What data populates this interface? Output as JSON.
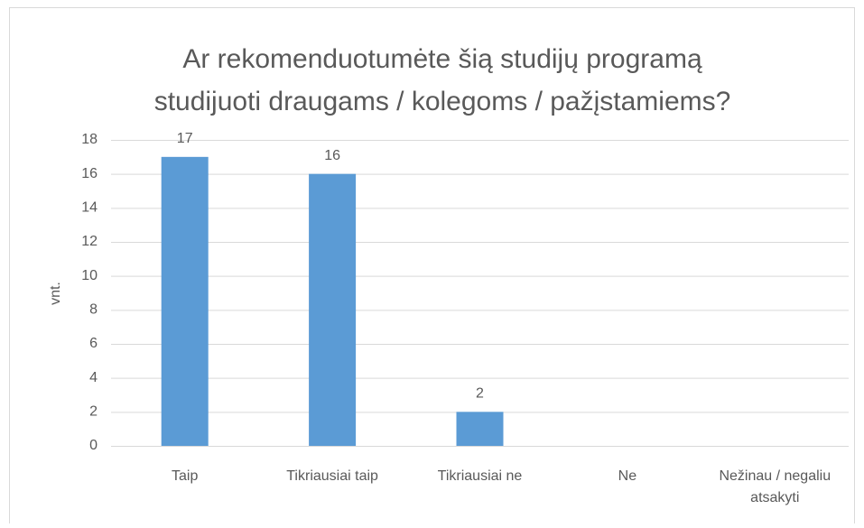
{
  "chart_data": {
    "type": "bar",
    "title": [
      "Ar rekomenduotumėte šią studijų programą",
      "studijuoti draugams / kolegoms / pažįstamiems?"
    ],
    "ylabel": "vnt.",
    "categories": [
      "Taip",
      "Tikriausiai taip",
      "Tikriausiai ne",
      "Ne",
      "Nežinau / negaliu atsakyti"
    ],
    "values": [
      17,
      16,
      2,
      0,
      0
    ],
    "color": "#5b9bd5",
    "ylim": [
      0,
      18
    ],
    "yticks": [
      0,
      2,
      4,
      6,
      8,
      10,
      12,
      14,
      16,
      18
    ],
    "grid": true
  }
}
